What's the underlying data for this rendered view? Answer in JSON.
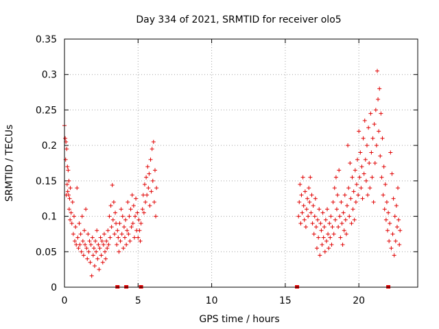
{
  "chart_data": {
    "type": "scatter",
    "title": "Day 334 of 2021, SRMTID for receiver olo5",
    "xlabel": "GPS time / hours",
    "ylabel": "SRMTID / TECUs",
    "xlim": [
      0,
      24
    ],
    "ylim": [
      0,
      0.35
    ],
    "x_ticks": [
      0,
      5,
      10,
      15,
      20
    ],
    "y_ticks": [
      0,
      0.05,
      0.1,
      0.15,
      0.2,
      0.25,
      0.3,
      0.35
    ],
    "x_tick_labels": [
      "0",
      "5",
      "10",
      "15",
      "20"
    ],
    "y_tick_labels": [
      "0",
      "0.05",
      "0.1",
      "0.15",
      "0.2",
      "0.25",
      "0.3",
      "0.35"
    ],
    "grid": true,
    "marker": "+",
    "series_color": "#e00000",
    "axis_markers_x": [
      3.6,
      4.2,
      5.2,
      15.8,
      22.0
    ],
    "series": [
      {
        "name": "SRMTID",
        "points": [
          [
            0.0,
            0.228
          ],
          [
            0.05,
            0.21
          ],
          [
            0.08,
            0.18
          ],
          [
            0.1,
            0.205
          ],
          [
            0.12,
            0.13
          ],
          [
            0.15,
            0.195
          ],
          [
            0.18,
            0.145
          ],
          [
            0.2,
            0.17
          ],
          [
            0.22,
            0.135
          ],
          [
            0.25,
            0.165
          ],
          [
            0.28,
            0.13
          ],
          [
            0.3,
            0.15
          ],
          [
            0.32,
            0.11
          ],
          [
            0.35,
            0.125
          ],
          [
            0.38,
            0.095
          ],
          [
            0.4,
            0.14
          ],
          [
            0.45,
            0.105
          ],
          [
            0.5,
            0.09
          ],
          [
            0.55,
            0.12
          ],
          [
            0.6,
            0.075
          ],
          [
            0.65,
            0.1
          ],
          [
            0.7,
            0.065
          ],
          [
            0.75,
            0.085
          ],
          [
            0.8,
            0.06
          ],
          [
            0.85,
            0.14
          ],
          [
            0.9,
            0.07
          ],
          [
            0.95,
            0.055
          ],
          [
            1.0,
            0.09
          ],
          [
            1.05,
            0.06
          ],
          [
            1.1,
            0.075
          ],
          [
            1.15,
            0.05
          ],
          [
            1.2,
            0.1
          ],
          [
            1.25,
            0.065
          ],
          [
            1.3,
            0.045
          ],
          [
            1.35,
            0.08
          ],
          [
            1.4,
            0.06
          ],
          [
            1.45,
            0.11
          ],
          [
            1.5,
            0.055
          ],
          [
            1.55,
            0.04
          ],
          [
            1.6,
            0.075
          ],
          [
            1.65,
            0.05
          ],
          [
            1.7,
            0.065
          ],
          [
            1.75,
            0.035
          ],
          [
            1.8,
            0.06
          ],
          [
            1.85,
            0.016
          ],
          [
            1.9,
            0.07
          ],
          [
            1.95,
            0.045
          ],
          [
            2.0,
            0.055
          ],
          [
            2.05,
            0.03
          ],
          [
            2.1,
            0.065
          ],
          [
            2.15,
            0.05
          ],
          [
            2.2,
            0.08
          ],
          [
            2.25,
            0.04
          ],
          [
            2.3,
            0.06
          ],
          [
            2.35,
            0.025
          ],
          [
            2.4,
            0.055
          ],
          [
            2.45,
            0.07
          ],
          [
            2.5,
            0.045
          ],
          [
            2.55,
            0.065
          ],
          [
            2.6,
            0.035
          ],
          [
            2.65,
            0.06
          ],
          [
            2.7,
            0.075
          ],
          [
            2.75,
            0.05
          ],
          [
            2.8,
            0.04
          ],
          [
            2.85,
            0.065
          ],
          [
            2.9,
            0.055
          ],
          [
            2.95,
            0.08
          ],
          [
            3.0,
            0.06
          ],
          [
            3.05,
            0.1
          ],
          [
            3.1,
            0.07
          ],
          [
            3.15,
            0.115
          ],
          [
            3.2,
            0.085
          ],
          [
            3.25,
            0.144
          ],
          [
            3.3,
            0.095
          ],
          [
            3.35,
            0.12
          ],
          [
            3.4,
            0.075
          ],
          [
            3.45,
            0.105
          ],
          [
            3.5,
            0.09
          ],
          [
            3.55,
            0.06
          ],
          [
            3.6,
            0.08
          ],
          [
            3.65,
            0.07
          ],
          [
            3.7,
            0.05
          ],
          [
            3.75,
            0.09
          ],
          [
            3.8,
            0.065
          ],
          [
            3.85,
            0.11
          ],
          [
            3.9,
            0.075
          ],
          [
            3.95,
            0.1
          ],
          [
            4.0,
            0.055
          ],
          [
            4.05,
            0.085
          ],
          [
            4.1,
            0.07
          ],
          [
            4.15,
            0.095
          ],
          [
            4.2,
            0.06
          ],
          [
            4.25,
            0.08
          ],
          [
            4.3,
            0.12
          ],
          [
            4.35,
            0.075
          ],
          [
            4.4,
            0.1
          ],
          [
            4.45,
            0.065
          ],
          [
            4.5,
            0.11
          ],
          [
            4.55,
            0.085
          ],
          [
            4.6,
            0.13
          ],
          [
            4.65,
            0.09
          ],
          [
            4.7,
            0.115
          ],
          [
            4.75,
            0.07
          ],
          [
            4.8,
            0.1
          ],
          [
            4.85,
            0.125
          ],
          [
            4.9,
            0.08
          ],
          [
            4.95,
            0.105
          ],
          [
            5.0,
            0.07
          ],
          [
            5.05,
            0.095
          ],
          [
            5.1,
            0.08
          ],
          [
            5.15,
            0.065
          ],
          [
            5.2,
            0.09
          ],
          [
            5.3,
            0.11
          ],
          [
            5.35,
            0.13
          ],
          [
            5.4,
            0.105
          ],
          [
            5.45,
            0.145
          ],
          [
            5.5,
            0.12
          ],
          [
            5.55,
            0.155
          ],
          [
            5.6,
            0.13
          ],
          [
            5.65,
            0.17
          ],
          [
            5.7,
            0.14
          ],
          [
            5.75,
            0.16
          ],
          [
            5.8,
            0.115
          ],
          [
            5.85,
            0.18
          ],
          [
            5.9,
            0.135
          ],
          [
            5.95,
            0.195
          ],
          [
            6.0,
            0.15
          ],
          [
            6.05,
            0.205
          ],
          [
            6.1,
            0.12
          ],
          [
            6.15,
            0.165
          ],
          [
            6.2,
            0.1
          ],
          [
            6.25,
            0.14
          ],
          [
            15.9,
            0.1
          ],
          [
            15.95,
            0.12
          ],
          [
            16.0,
            0.145
          ],
          [
            16.05,
            0.09
          ],
          [
            16.1,
            0.13
          ],
          [
            16.15,
            0.105
          ],
          [
            16.2,
            0.155
          ],
          [
            16.25,
            0.115
          ],
          [
            16.3,
            0.095
          ],
          [
            16.35,
            0.135
          ],
          [
            16.4,
            0.085
          ],
          [
            16.45,
            0.11
          ],
          [
            16.5,
            0.125
          ],
          [
            16.55,
            0.1
          ],
          [
            16.6,
            0.14
          ],
          [
            16.65,
            0.12
          ],
          [
            16.7,
            0.155
          ],
          [
            16.75,
            0.105
          ],
          [
            16.8,
            0.13
          ],
          [
            16.85,
            0.09
          ],
          [
            16.9,
            0.115
          ],
          [
            16.95,
            0.075
          ],
          [
            17.0,
            0.1
          ],
          [
            17.05,
            0.125
          ],
          [
            17.1,
            0.085
          ],
          [
            17.15,
            0.055
          ],
          [
            17.2,
            0.095
          ],
          [
            17.25,
            0.07
          ],
          [
            17.3,
            0.11
          ],
          [
            17.35,
            0.045
          ],
          [
            17.4,
            0.09
          ],
          [
            17.45,
            0.08
          ],
          [
            17.5,
            0.06
          ],
          [
            17.55,
            0.105
          ],
          [
            17.6,
            0.07
          ],
          [
            17.65,
            0.085
          ],
          [
            17.7,
            0.05
          ],
          [
            17.75,
            0.095
          ],
          [
            17.8,
            0.065
          ],
          [
            17.85,
            0.11
          ],
          [
            17.9,
            0.075
          ],
          [
            17.95,
            0.055
          ],
          [
            18.0,
            0.09
          ],
          [
            18.05,
            0.07
          ],
          [
            18.1,
            0.1
          ],
          [
            18.15,
            0.06
          ],
          [
            18.2,
            0.085
          ],
          [
            18.25,
            0.12
          ],
          [
            18.3,
            0.075
          ],
          [
            18.35,
            0.14
          ],
          [
            18.4,
            0.095
          ],
          [
            18.45,
            0.155
          ],
          [
            18.5,
            0.11
          ],
          [
            18.55,
            0.13
          ],
          [
            18.6,
            0.085
          ],
          [
            18.65,
            0.165
          ],
          [
            18.7,
            0.1
          ],
          [
            18.75,
            0.07
          ],
          [
            18.8,
            0.12
          ],
          [
            18.85,
            0.09
          ],
          [
            18.9,
            0.06
          ],
          [
            18.95,
            0.105
          ],
          [
            19.0,
            0.08
          ],
          [
            19.05,
            0.13
          ],
          [
            19.1,
            0.095
          ],
          [
            19.15,
            0.075
          ],
          [
            19.2,
            0.115
          ],
          [
            19.25,
            0.2
          ],
          [
            19.3,
            0.14
          ],
          [
            19.35,
            0.1
          ],
          [
            19.4,
            0.175
          ],
          [
            19.45,
            0.125
          ],
          [
            19.5,
            0.09
          ],
          [
            19.55,
            0.155
          ],
          [
            19.6,
            0.11
          ],
          [
            19.65,
            0.135
          ],
          [
            19.7,
            0.095
          ],
          [
            19.75,
            0.165
          ],
          [
            19.8,
            0.12
          ],
          [
            19.85,
            0.145
          ],
          [
            19.9,
            0.18
          ],
          [
            19.95,
            0.13
          ],
          [
            20.0,
            0.22
          ],
          [
            20.05,
            0.155
          ],
          [
            20.1,
            0.19
          ],
          [
            20.15,
            0.14
          ],
          [
            20.2,
            0.17
          ],
          [
            20.25,
            0.125
          ],
          [
            20.3,
            0.21
          ],
          [
            20.35,
            0.16
          ],
          [
            20.4,
            0.235
          ],
          [
            20.45,
            0.18
          ],
          [
            20.5,
            0.15
          ],
          [
            20.55,
            0.2
          ],
          [
            20.6,
            0.13
          ],
          [
            20.65,
            0.225
          ],
          [
            20.7,
            0.175
          ],
          [
            20.75,
            0.14
          ],
          [
            20.8,
            0.245
          ],
          [
            20.85,
            0.19
          ],
          [
            20.9,
            0.155
          ],
          [
            20.95,
            0.21
          ],
          [
            21.0,
            0.12
          ],
          [
            21.05,
            0.23
          ],
          [
            21.1,
            0.175
          ],
          [
            21.15,
            0.25
          ],
          [
            21.2,
            0.2
          ],
          [
            21.25,
            0.305
          ],
          [
            21.3,
            0.265
          ],
          [
            21.35,
            0.22
          ],
          [
            21.4,
            0.28
          ],
          [
            21.45,
            0.185
          ],
          [
            21.5,
            0.245
          ],
          [
            21.55,
            0.155
          ],
          [
            21.6,
            0.21
          ],
          [
            21.65,
            0.13
          ],
          [
            21.7,
            0.17
          ],
          [
            21.75,
            0.11
          ],
          [
            21.8,
            0.145
          ],
          [
            21.85,
            0.095
          ],
          [
            21.9,
            0.12
          ],
          [
            21.95,
            0.08
          ],
          [
            22.0,
            0.105
          ],
          [
            22.05,
            0.065
          ],
          [
            22.1,
            0.09
          ],
          [
            22.15,
            0.19
          ],
          [
            22.2,
            0.055
          ],
          [
            22.25,
            0.16
          ],
          [
            22.3,
            0.075
          ],
          [
            22.35,
            0.125
          ],
          [
            22.4,
            0.045
          ],
          [
            22.45,
            0.1
          ],
          [
            22.5,
            0.065
          ],
          [
            22.55,
            0.115
          ],
          [
            22.6,
            0.085
          ],
          [
            22.65,
            0.14
          ],
          [
            22.7,
            0.095
          ],
          [
            22.75,
            0.06
          ],
          [
            22.8,
            0.08
          ]
        ]
      }
    ]
  }
}
